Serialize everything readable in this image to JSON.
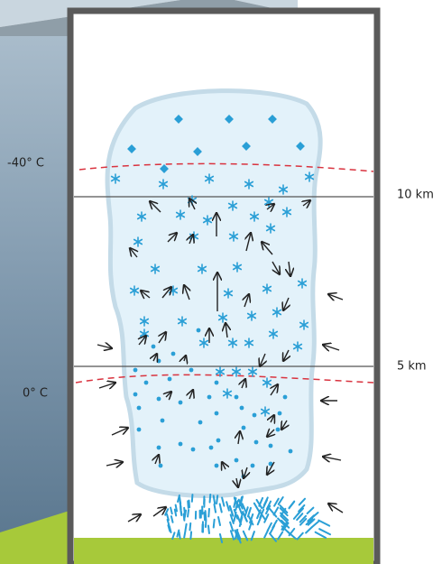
{
  "labels": {
    "temp_top": "-40° C",
    "temp_bottom": "0° C",
    "height_top": "10 km",
    "height_bottom": "5 km"
  }
}
